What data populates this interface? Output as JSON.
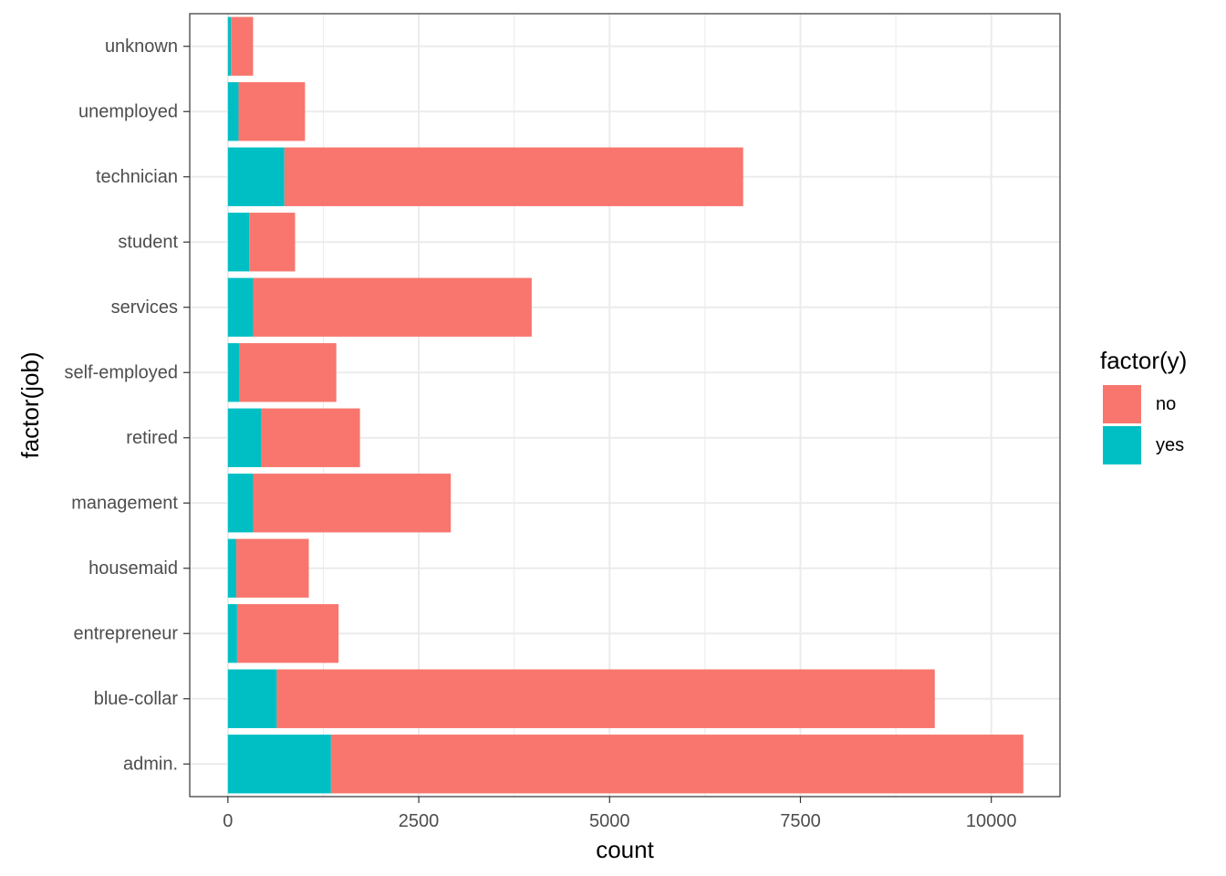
{
  "chart_data": {
    "type": "bar",
    "orientation": "horizontal",
    "stacked": true,
    "title": "",
    "xlabel": "count",
    "ylabel": "factor(job)",
    "xlim": [
      -500,
      10900
    ],
    "x_ticks": [
      0,
      2500,
      5000,
      7500,
      10000
    ],
    "x_tick_labels": [
      "0",
      "2500",
      "5000",
      "7500",
      "10000"
    ],
    "grid": true,
    "legend_position": "right",
    "legend_title": "factor(y)",
    "categories": [
      "admin.",
      "blue-collar",
      "entrepreneur",
      "housemaid",
      "management",
      "retired",
      "self-employed",
      "services",
      "student",
      "technician",
      "unemployed",
      "unknown"
    ],
    "series": [
      {
        "name": "no",
        "color": "#F8766D",
        "values": [
          9070,
          8620,
          1330,
          950,
          2590,
          1290,
          1270,
          3650,
          600,
          6010,
          870,
          290
        ]
      },
      {
        "name": "yes",
        "color": "#00BFC4",
        "values": [
          1350,
          640,
          120,
          110,
          330,
          440,
          150,
          330,
          280,
          740,
          140,
          40
        ]
      }
    ]
  }
}
